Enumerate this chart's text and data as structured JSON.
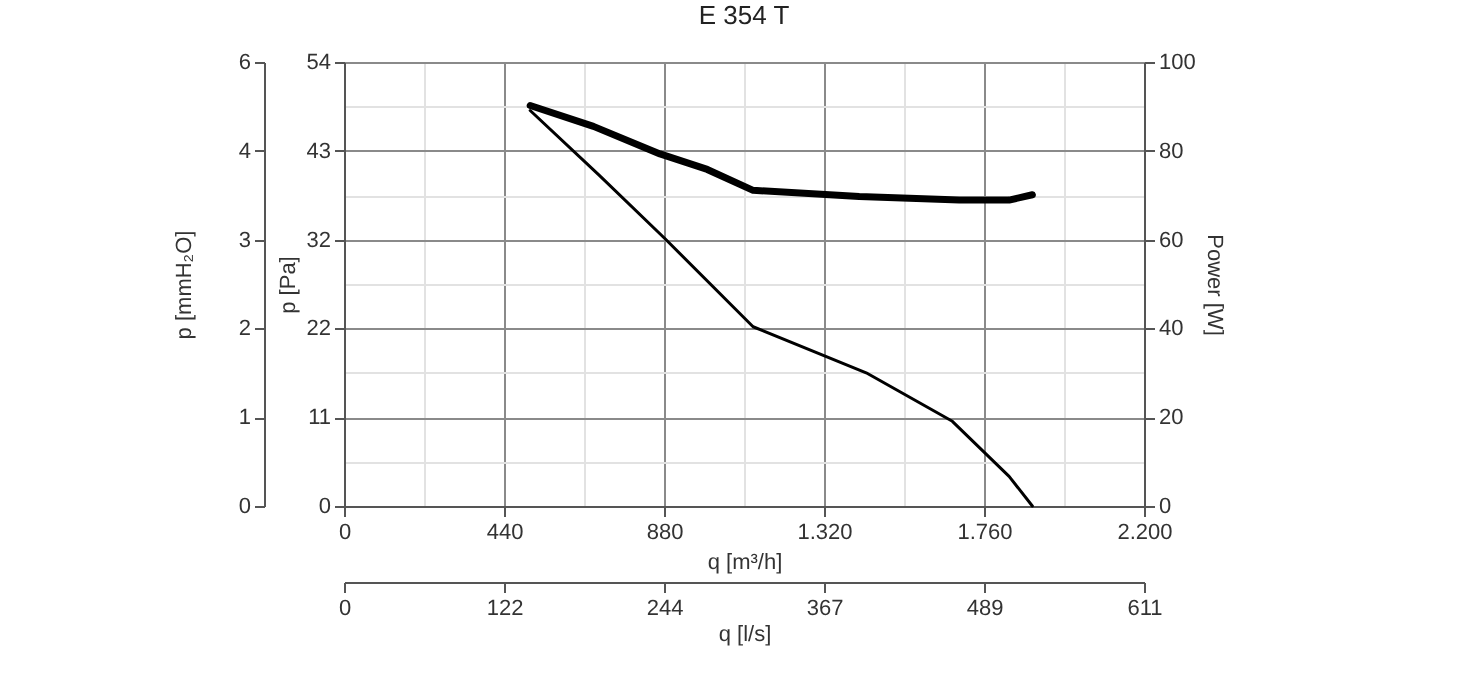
{
  "chart_data": {
    "type": "line",
    "title": "E 354 T",
    "xlabel": "q [m³/h]",
    "ylabel": "p [Pa]",
    "y2label": "Power [W]",
    "y3label": "p [mmH₂O]",
    "x2label": "q [l/s]",
    "xlim": [
      0,
      2200
    ],
    "xticks": [
      0,
      {
        "value": 220,
        "label": null
      },
      440,
      {
        "value": 660,
        "label": null
      },
      880,
      {
        "value": 1100,
        "label": null
      },
      {
        "value": 1320,
        "label": "1.320"
      },
      {
        "value": 1540,
        "label": null
      },
      {
        "value": 1760,
        "label": "1.760"
      },
      {
        "value": 1980,
        "label": null
      },
      {
        "value": 2200,
        "label": "2.200"
      }
    ],
    "ylim": [
      0,
      54
    ],
    "yticks": [
      0,
      {
        "value": 5.4,
        "label": null
      },
      {
        "value": 10.8,
        "label": "11"
      },
      {
        "value": 16.2,
        "label": null
      },
      {
        "value": 21.6,
        "label": "22"
      },
      {
        "value": 27,
        "label": null
      },
      {
        "value": 32.4,
        "label": "32"
      },
      {
        "value": 37.8,
        "label": null
      },
      {
        "value": 43.2,
        "label": "43"
      },
      {
        "value": 48.6,
        "label": null
      },
      54
    ],
    "y2lim": [
      0,
      100
    ],
    "y2ticks": [
      0,
      20,
      40,
      60,
      80,
      100
    ],
    "y3lim": [
      0,
      5.5
    ],
    "y3ticks": [
      0,
      {
        "value": 1.1,
        "label": "1"
      },
      {
        "value": 2.2,
        "label": "2"
      },
      {
        "value": 3.3,
        "label": "3"
      },
      {
        "value": 4.4,
        "label": "4"
      },
      {
        "value": 5.5,
        "label": "6"
      }
    ],
    "x2lim": [
      0,
      611
    ],
    "x2ticks": [
      0,
      {
        "value": 122.2,
        "label": "122"
      },
      {
        "value": 244.4,
        "label": "244"
      },
      {
        "value": 366.7,
        "label": "367"
      },
      {
        "value": 488.9,
        "label": "489"
      },
      611
    ],
    "grid": true,
    "series": [
      {
        "color": "#000000",
        "x": [
          512,
          700,
          883,
          1125,
          1436,
          1673,
          1829,
          1893
        ],
        "values": [
          48.1,
          40.3,
          32.5,
          21.8,
          16.2,
          10.3,
          3.6,
          0
        ]
      },
      {
        "color": "#000000",
        "axis": "y2",
        "x": [
          512,
          686,
          869,
          999,
          1125,
          1417,
          1692,
          1829,
          1893
        ],
        "values": [
          90.2,
          85.5,
          79.3,
          75.8,
          71.1,
          69.7,
          68.9,
          68.9,
          70.1
        ]
      }
    ]
  }
}
